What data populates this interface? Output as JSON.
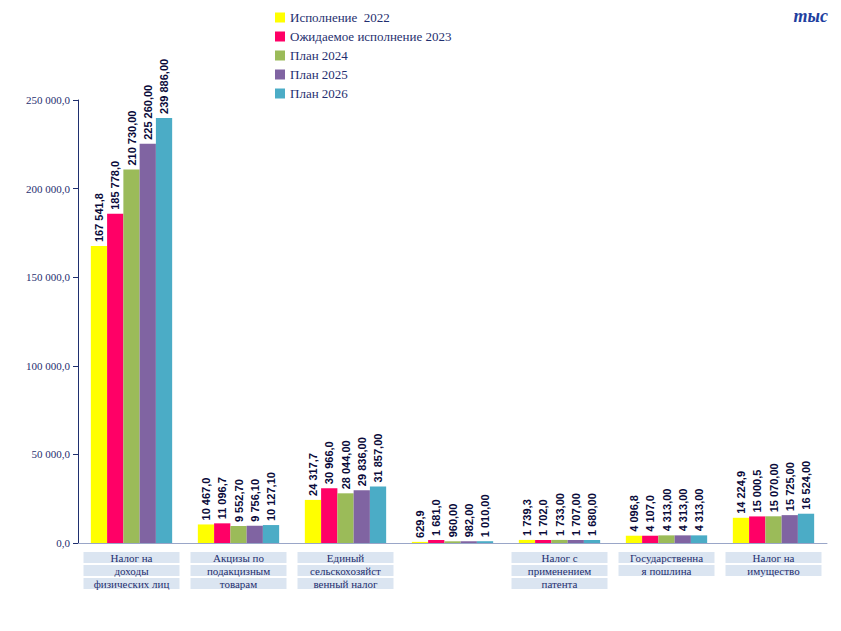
{
  "chart_data": {
    "type": "bar",
    "title": "тыс",
    "categories": [
      "Налог на доходы физических лиц",
      "Акцизы по подакцизным товарам",
      "Единый сельскохозяйственный налог",
      null,
      "Налог с применением патента",
      "Государственная пошлина",
      "Налог на имущество"
    ],
    "series": [
      {
        "name": "Исполнение  2022",
        "color": "#ffff00",
        "values": [
          167541.8,
          10467.0,
          24317.7,
          629.9,
          1739.3,
          4096.8,
          14224.9
        ],
        "value_labels": [
          "167 541,8",
          "10 467,0",
          "24 317,7",
          "629,9",
          "1 739,3",
          "4 096,8",
          "14 224,9"
        ]
      },
      {
        "name": "Ожидаемое исполнение 2023",
        "color": "#ff0066",
        "values": [
          185778.0,
          11096.7,
          30966.0,
          1681.0,
          1702.0,
          4107.0,
          15000.5
        ],
        "value_labels": [
          "185 778,0",
          "11 096,7",
          "30 966,0",
          "1 681,0",
          "1 702,0",
          "4 107,0",
          "15 000,5"
        ]
      },
      {
        "name": "План 2024",
        "color": "#9bbb59",
        "values": [
          210730.0,
          9552.7,
          28044.0,
          960.0,
          1733.0,
          4313.0,
          15070.0
        ],
        "value_labels": [
          "210 730,00",
          "9 552,70",
          "28 044,00",
          "960,00",
          "1 733,00",
          "4 313,00",
          "15 070,00"
        ]
      },
      {
        "name": "План 2025",
        "color": "#8064a2",
        "values": [
          225260.0,
          9756.1,
          29836.0,
          982.0,
          1707.0,
          4313.0,
          15725.0
        ],
        "value_labels": [
          "225 260,00",
          "9 756,10",
          "29 836,00",
          "982,00",
          "1 707,00",
          "4 313,00",
          "15 725,00"
        ]
      },
      {
        "name": "План 2026",
        "color": "#4bacc6",
        "values": [
          239886.0,
          10127.1,
          31857.0,
          1010.0,
          1680.0,
          4313.0,
          16524.0
        ],
        "value_labels": [
          "239 886,00",
          "10 127,10",
          "31 857,00",
          "1 010,00",
          "1 680,00",
          "4 313,00",
          "16 524,00"
        ]
      }
    ],
    "ylim": [
      0,
      250000
    ],
    "yticks": [
      {
        "value": 0,
        "label": "0,0"
      },
      {
        "value": 50000,
        "label": "50 000,0"
      },
      {
        "value": 100000,
        "label": "100 000,0"
      },
      {
        "value": 150000,
        "label": "150 000,0"
      },
      {
        "value": 200000,
        "label": "200 000,0"
      },
      {
        "value": 250000,
        "label": "250 000,0"
      }
    ],
    "grid": false,
    "legend": "top",
    "data_labels": true
  }
}
